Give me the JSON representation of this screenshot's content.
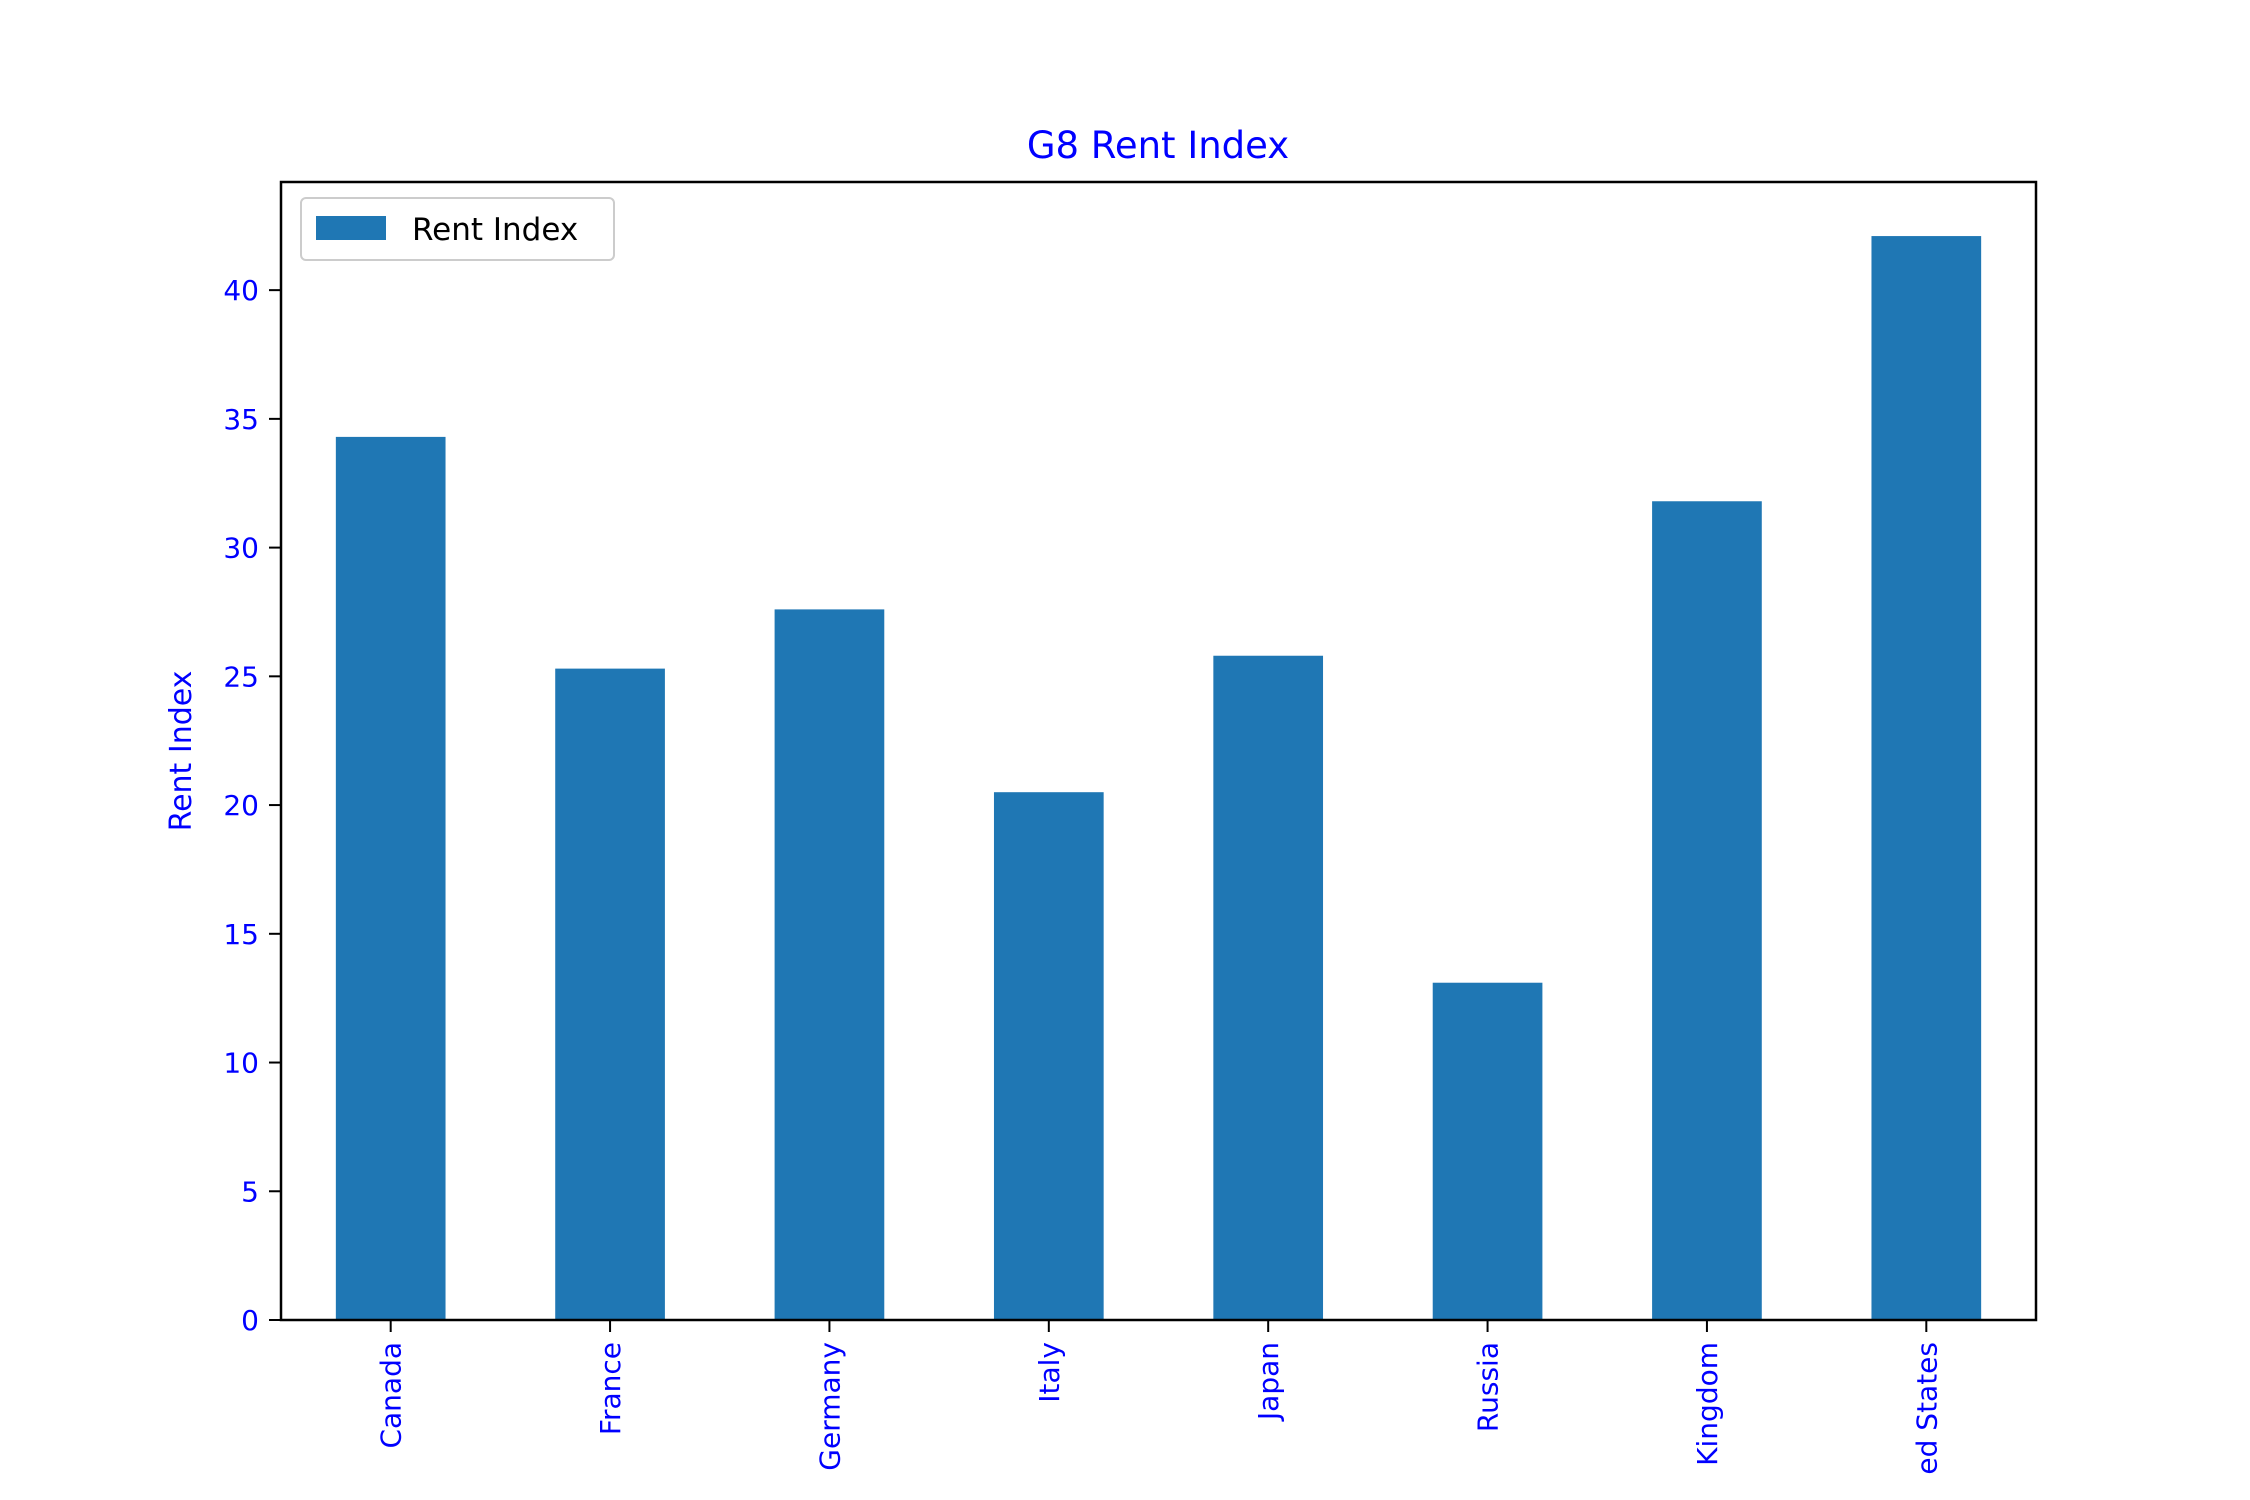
{
  "chart_data": {
    "type": "bar",
    "title": "G8 Rent Index",
    "xlabel": "",
    "ylabel": "Rent Index",
    "categories": [
      "Canada",
      "France",
      "Germany",
      "Italy",
      "Japan",
      "Russia",
      "United Kingdom",
      "United States"
    ],
    "category_labels_visible": [
      "Canada",
      "France",
      "Germany",
      "Italy",
      "Japan",
      "Russia",
      "Kingdom",
      "ed States"
    ],
    "series": [
      {
        "name": "Rent Index",
        "values": [
          34.3,
          25.3,
          27.6,
          20.5,
          25.8,
          13.1,
          31.8,
          42.1
        ]
      }
    ],
    "ylim": [
      0,
      44.2
    ],
    "yticks": [
      0,
      5,
      10,
      15,
      20,
      25,
      30,
      35,
      40
    ],
    "grid": false,
    "legend_position": "upper-left",
    "colors": {
      "bar": "#1f77b4",
      "text": "#0000ff",
      "axis": "#000000",
      "legend_border": "#cccccc"
    }
  }
}
